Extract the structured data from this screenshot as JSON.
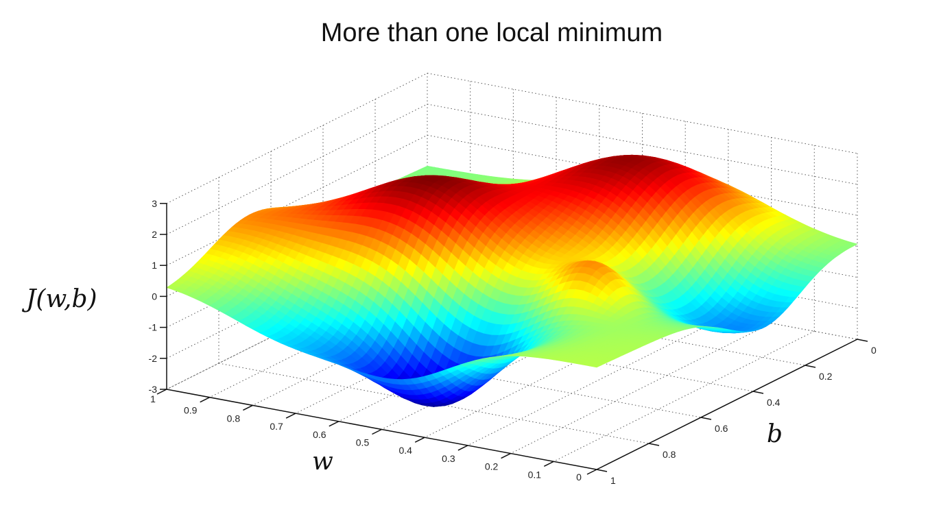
{
  "chart_data": {
    "type": "surface",
    "title": "More than one local minimum",
    "xlabel": "w",
    "ylabel": "b",
    "zlabel": "J(w,b)",
    "xlim": [
      0,
      1
    ],
    "ylim": [
      0,
      1
    ],
    "zlim": [
      -3,
      3
    ],
    "x_ticks": [
      "0",
      "0.1",
      "0.2",
      "0.3",
      "0.4",
      "0.5",
      "0.6",
      "0.7",
      "0.8",
      "0.9",
      "1"
    ],
    "y_ticks": [
      "0",
      "0.2",
      "0.4",
      "0.6",
      "0.8",
      "1"
    ],
    "z_ticks": [
      "-3",
      "-2",
      "-1",
      "0",
      "1",
      "2",
      "3"
    ],
    "grid": true,
    "colormap": "jet",
    "local_extrema": [
      {
        "w": 0.67,
        "b": 0.55,
        "z": 2.4,
        "spread": 0.15
      },
      {
        "w": 0.39,
        "b": 0.2,
        "z": 2.6,
        "spread": 0.18
      },
      {
        "w": 0.45,
        "b": 0.85,
        "z": -2.8,
        "spread": 0.12
      },
      {
        "w": 0.1,
        "b": 0.35,
        "z": -1.8,
        "spread": 0.14
      },
      {
        "w": 0.98,
        "b": 0.7,
        "z": 1.0,
        "spread": 0.15
      },
      {
        "w": 0.7,
        "b": 0.95,
        "z": -1.2,
        "spread": 0.15
      },
      {
        "w": 0.25,
        "b": 0.6,
        "z": 1.2,
        "spread": 0.07
      }
    ]
  }
}
